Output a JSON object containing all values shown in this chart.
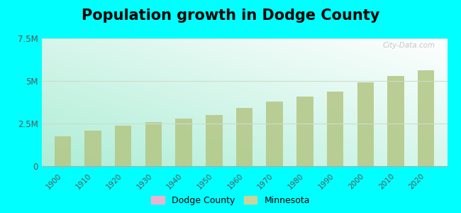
{
  "title": "Population growth in Dodge County",
  "years": [
    1900,
    1910,
    1920,
    1930,
    1940,
    1950,
    1960,
    1970,
    1980,
    1990,
    2000,
    2010,
    2020
  ],
  "minnesota_values": [
    1750000,
    2075000,
    2387000,
    2564000,
    2792000,
    2982000,
    3414000,
    3805000,
    4076000,
    4375000,
    4919000,
    5303000,
    5640000
  ],
  "bar_color": "#b5c98a",
  "background_color": "#00FFFF",
  "ylim": [
    0,
    7500000
  ],
  "yticks": [
    0,
    2500000,
    5000000,
    7500000
  ],
  "ytick_labels": [
    "0",
    "2.5M",
    "5M",
    "7.5M"
  ],
  "watermark": "City-Data.com",
  "legend_dodge_color": "#e8b4d0",
  "legend_mn_color": "#c8d49a",
  "title_fontsize": 15,
  "grid_color": "#ccddcc",
  "plot_bg_colors": [
    "#b8ede0",
    "#ffffff"
  ],
  "plot_bg_left_colors": [
    "#a8e8d8",
    "#e8f8f0"
  ]
}
